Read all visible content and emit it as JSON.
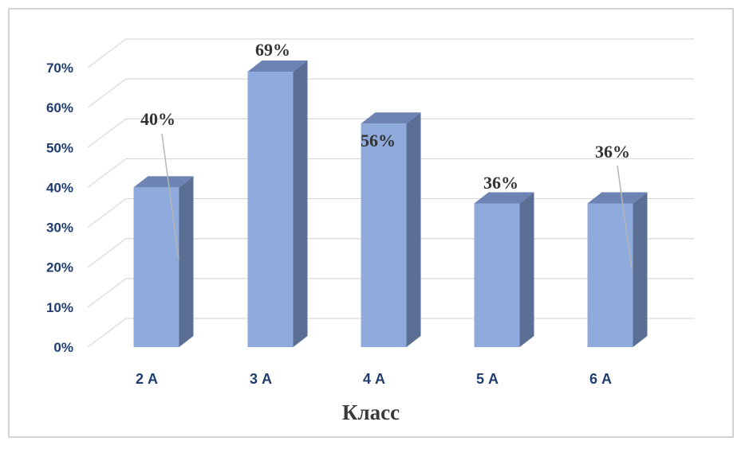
{
  "chart_data": {
    "type": "bar",
    "categories": [
      "2 А",
      "3 А",
      "4 А",
      "5 А",
      "6 А"
    ],
    "values": [
      40,
      69,
      56,
      36,
      36
    ],
    "data_labels": [
      "40%",
      "69%",
      "56%",
      "36%",
      "36%"
    ],
    "y_ticks": [
      "0%",
      "10%",
      "20%",
      "30%",
      "40%",
      "50%",
      "60%",
      "70%"
    ],
    "ylim": [
      0,
      70
    ],
    "xlabel": "Класс",
    "grid": true,
    "legend": "none",
    "colors": {
      "bar_front": "#8faadc",
      "bar_side": "#5b6f94",
      "bar_top": "#6d83b3",
      "axis_text": "#1f3c6e"
    }
  }
}
